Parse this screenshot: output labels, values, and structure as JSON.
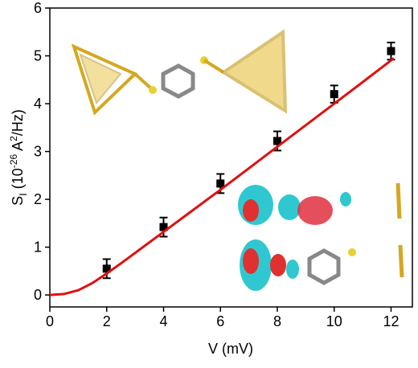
{
  "chart_data": {
    "type": "scatter",
    "xlabel": "V (mV)",
    "ylabel": {
      "main": "S",
      "sub": "I",
      "open": " (10",
      "exp": "-26",
      "unit": " A",
      "power": "2",
      "close": "/Hz)"
    },
    "xlim": [
      0,
      12.75
    ],
    "ylim": [
      -0.25,
      6
    ],
    "xticks": [
      0,
      2,
      4,
      6,
      8,
      10,
      12
    ],
    "yticks": [
      0,
      1,
      2,
      3,
      4,
      5,
      6
    ],
    "series": [
      {
        "mode": "markers",
        "color": "#000000",
        "x": [
          2,
          4,
          6,
          8,
          10,
          12
        ],
        "values": [
          0.55,
          1.42,
          2.33,
          3.22,
          4.2,
          5.1
        ],
        "errors": [
          0.2,
          0.2,
          0.2,
          0.2,
          0.18,
          0.18
        ]
      },
      {
        "mode": "line",
        "color": "#e01010",
        "x": [
          0,
          0.5,
          1,
          1.5,
          2,
          2.5,
          3,
          4,
          5,
          6,
          7,
          8,
          9,
          10,
          11,
          12.1
        ],
        "values": [
          0,
          0.02,
          0.1,
          0.25,
          0.45,
          0.66,
          0.88,
          1.32,
          1.76,
          2.2,
          2.65,
          3.1,
          3.55,
          4.0,
          4.45,
          4.95
        ]
      }
    ]
  }
}
